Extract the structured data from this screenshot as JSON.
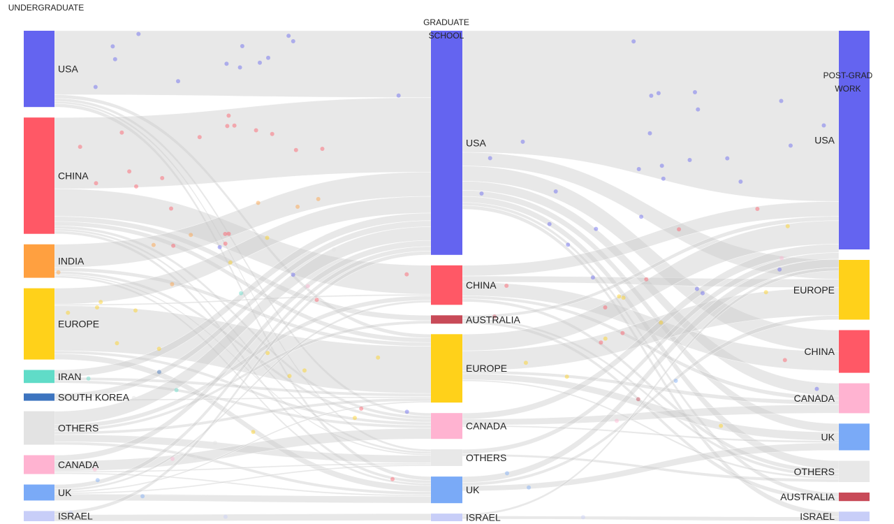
{
  "columns": [
    {
      "title_lines": [
        "UNDERGRADUATE"
      ]
    },
    {
      "title_lines": [
        "GRADUATE",
        "SCHOOL"
      ]
    },
    {
      "title_lines": [
        "POST-GRAD",
        "WORK"
      ]
    }
  ],
  "nodes": [
    [
      {
        "id": "ug-usa",
        "label": "USA",
        "color": "#6464f0",
        "value": 105
      },
      {
        "id": "ug-china",
        "label": "CHINA",
        "color": "#ff5866",
        "value": 160
      },
      {
        "id": "ug-india",
        "label": "INDIA",
        "color": "#ffa040",
        "value": 46
      },
      {
        "id": "ug-europe",
        "label": "EUROPE",
        "color": "#ffd11a",
        "value": 98
      },
      {
        "id": "ug-iran",
        "label": "IRAN",
        "color": "#60dcc8",
        "value": 18
      },
      {
        "id": "ug-south-korea",
        "label": "SOUTH KOREA",
        "color": "#3d74bf",
        "value": 10
      },
      {
        "id": "ug-others",
        "label": "OTHERS",
        "color": "#e3e3e3",
        "value": 46
      },
      {
        "id": "ug-canada",
        "label": "CANADA",
        "color": "#ffb3d1",
        "value": 26
      },
      {
        "id": "ug-uk",
        "label": "UK",
        "color": "#7aaaf7",
        "value": 22
      },
      {
        "id": "ug-israel",
        "label": "ISRAEL",
        "color": "#c8cef8",
        "value": 14
      }
    ],
    [
      {
        "id": "gs-usa",
        "label": "USA",
        "color": "#6464f0",
        "value": 295
      },
      {
        "id": "gs-china",
        "label": "CHINA",
        "color": "#ff5866",
        "value": 52
      },
      {
        "id": "gs-australia",
        "label": "AUSTRALIA",
        "color": "#c84a58",
        "value": 11
      },
      {
        "id": "gs-europe",
        "label": "EUROPE",
        "color": "#ffd11a",
        "value": 90
      },
      {
        "id": "gs-canada",
        "label": "CANADA",
        "color": "#ffb3d1",
        "value": 34
      },
      {
        "id": "gs-others",
        "label": "OTHERS",
        "color": "#e8e8e8",
        "value": 22
      },
      {
        "id": "gs-uk",
        "label": "UK",
        "color": "#7aaaf7",
        "value": 35
      },
      {
        "id": "gs-israel",
        "label": "ISRAEL",
        "color": "#c8cef8",
        "value": 10
      }
    ],
    [
      {
        "id": "pw-usa",
        "label": "USA",
        "color": "#6464f0",
        "value": 205
      },
      {
        "id": "pw-europe",
        "label": "EUROPE",
        "color": "#ffd11a",
        "value": 56
      },
      {
        "id": "pw-china",
        "label": "CHINA",
        "color": "#ff5866",
        "value": 40
      },
      {
        "id": "pw-canada",
        "label": "CANADA",
        "color": "#ffb3d1",
        "value": 28
      },
      {
        "id": "pw-uk",
        "label": "UK",
        "color": "#7aaaf7",
        "value": 25
      },
      {
        "id": "pw-others",
        "label": "OTHERS",
        "color": "#e8e8e8",
        "value": 20
      },
      {
        "id": "pw-australia",
        "label": "AUSTRALIA",
        "color": "#c84a58",
        "value": 8
      },
      {
        "id": "pw-israel",
        "label": "ISRAEL",
        "color": "#c8cef8",
        "value": 9
      }
    ]
  ],
  "links": [
    {
      "source": "ug-usa",
      "target": "gs-usa",
      "value": 88
    },
    {
      "source": "ug-usa",
      "target": "gs-canada",
      "value": 4
    },
    {
      "source": "ug-usa",
      "target": "gs-uk",
      "value": 5
    },
    {
      "source": "ug-usa",
      "target": "gs-europe",
      "value": 5
    },
    {
      "source": "ug-usa",
      "target": "gs-others",
      "value": 3
    },
    {
      "source": "ug-china",
      "target": "gs-usa",
      "value": 98
    },
    {
      "source": "ug-china",
      "target": "gs-china",
      "value": 38
    },
    {
      "source": "ug-china",
      "target": "gs-australia",
      "value": 7
    },
    {
      "source": "ug-china",
      "target": "gs-europe",
      "value": 6
    },
    {
      "source": "ug-china",
      "target": "gs-canada",
      "value": 4
    },
    {
      "source": "ug-china",
      "target": "gs-uk",
      "value": 4
    },
    {
      "source": "ug-china",
      "target": "gs-others",
      "value": 3
    },
    {
      "source": "ug-india",
      "target": "gs-usa",
      "value": 32
    },
    {
      "source": "ug-india",
      "target": "gs-europe",
      "value": 5
    },
    {
      "source": "ug-india",
      "target": "gs-canada",
      "value": 4
    },
    {
      "source": "ug-india",
      "target": "gs-uk",
      "value": 3
    },
    {
      "source": "ug-india",
      "target": "gs-others",
      "value": 2
    },
    {
      "source": "ug-europe",
      "target": "gs-usa",
      "value": 22
    },
    {
      "source": "ug-europe",
      "target": "gs-europe",
      "value": 62
    },
    {
      "source": "ug-europe",
      "target": "gs-uk",
      "value": 8
    },
    {
      "source": "ug-europe",
      "target": "gs-canada",
      "value": 4
    },
    {
      "source": "ug-europe",
      "target": "gs-china",
      "value": 2
    },
    {
      "source": "ug-iran",
      "target": "gs-usa",
      "value": 10
    },
    {
      "source": "ug-iran",
      "target": "gs-canada",
      "value": 4
    },
    {
      "source": "ug-iran",
      "target": "gs-europe",
      "value": 4
    },
    {
      "source": "ug-south-korea",
      "target": "gs-usa",
      "value": 8
    },
    {
      "source": "ug-south-korea",
      "target": "gs-europe",
      "value": 2
    },
    {
      "source": "ug-others",
      "target": "gs-usa",
      "value": 18
    },
    {
      "source": "ug-others",
      "target": "gs-others",
      "value": 10
    },
    {
      "source": "ug-others",
      "target": "gs-europe",
      "value": 4
    },
    {
      "source": "ug-others",
      "target": "gs-china",
      "value": 6
    },
    {
      "source": "ug-others",
      "target": "gs-australia",
      "value": 4
    },
    {
      "source": "ug-others",
      "target": "gs-uk",
      "value": 4
    },
    {
      "source": "ug-canada",
      "target": "gs-usa",
      "value": 8
    },
    {
      "source": "ug-canada",
      "target": "gs-canada",
      "value": 14
    },
    {
      "source": "ug-canada",
      "target": "gs-others",
      "value": 2
    },
    {
      "source": "ug-canada",
      "target": "gs-uk",
      "value": 2
    },
    {
      "source": "ug-uk",
      "target": "gs-usa",
      "value": 6
    },
    {
      "source": "ug-uk",
      "target": "gs-uk",
      "value": 9
    },
    {
      "source": "ug-uk",
      "target": "gs-europe",
      "value": 2
    },
    {
      "source": "ug-uk",
      "target": "gs-others",
      "value": 2
    },
    {
      "source": "ug-uk",
      "target": "gs-china",
      "value": 3
    },
    {
      "source": "ug-israel",
      "target": "gs-usa",
      "value": 5
    },
    {
      "source": "ug-israel",
      "target": "gs-israel",
      "value": 9
    },
    {
      "source": "gs-usa",
      "target": "pw-usa",
      "value": 160
    },
    {
      "source": "gs-usa",
      "target": "pw-europe",
      "value": 18
    },
    {
      "source": "gs-usa",
      "target": "pw-china",
      "value": 20
    },
    {
      "source": "gs-usa",
      "target": "pw-canada",
      "value": 12
    },
    {
      "source": "gs-usa",
      "target": "pw-uk",
      "value": 8
    },
    {
      "source": "gs-usa",
      "target": "pw-others",
      "value": 8
    },
    {
      "source": "gs-usa",
      "target": "pw-australia",
      "value": 4
    },
    {
      "source": "gs-usa",
      "target": "pw-israel",
      "value": 5
    },
    {
      "source": "gs-china",
      "target": "pw-usa",
      "value": 14
    },
    {
      "source": "gs-china",
      "target": "pw-china",
      "value": 18
    },
    {
      "source": "gs-china",
      "target": "pw-europe",
      "value": 8
    },
    {
      "source": "gs-china",
      "target": "pw-canada",
      "value": 4
    },
    {
      "source": "gs-china",
      "target": "pw-others",
      "value": 4
    },
    {
      "source": "gs-australia",
      "target": "pw-usa",
      "value": 4
    },
    {
      "source": "gs-australia",
      "target": "pw-australia",
      "value": 4
    },
    {
      "source": "gs-australia",
      "target": "pw-others",
      "value": 3
    },
    {
      "source": "gs-europe",
      "target": "pw-usa",
      "value": 22
    },
    {
      "source": "gs-europe",
      "target": "pw-europe",
      "value": 26
    },
    {
      "source": "gs-europe",
      "target": "pw-uk",
      "value": 8
    },
    {
      "source": "gs-europe",
      "target": "pw-canada",
      "value": 4
    },
    {
      "source": "gs-europe",
      "target": "pw-others",
      "value": 2
    },
    {
      "source": "gs-canada",
      "target": "pw-usa",
      "value": 8
    },
    {
      "source": "gs-canada",
      "target": "pw-canada",
      "value": 8
    },
    {
      "source": "gs-canada",
      "target": "pw-uk",
      "value": 2
    },
    {
      "source": "gs-others",
      "target": "pw-usa",
      "value": 6
    },
    {
      "source": "gs-others",
      "target": "pw-others",
      "value": 3
    },
    {
      "source": "gs-uk",
      "target": "pw-usa",
      "value": 8
    },
    {
      "source": "gs-uk",
      "target": "pw-uk",
      "value": 7
    },
    {
      "source": "gs-uk",
      "target": "pw-europe",
      "value": 4
    },
    {
      "source": "gs-israel",
      "target": "pw-usa",
      "value": 3
    },
    {
      "source": "gs-israel",
      "target": "pw-israel",
      "value": 4
    }
  ]
}
